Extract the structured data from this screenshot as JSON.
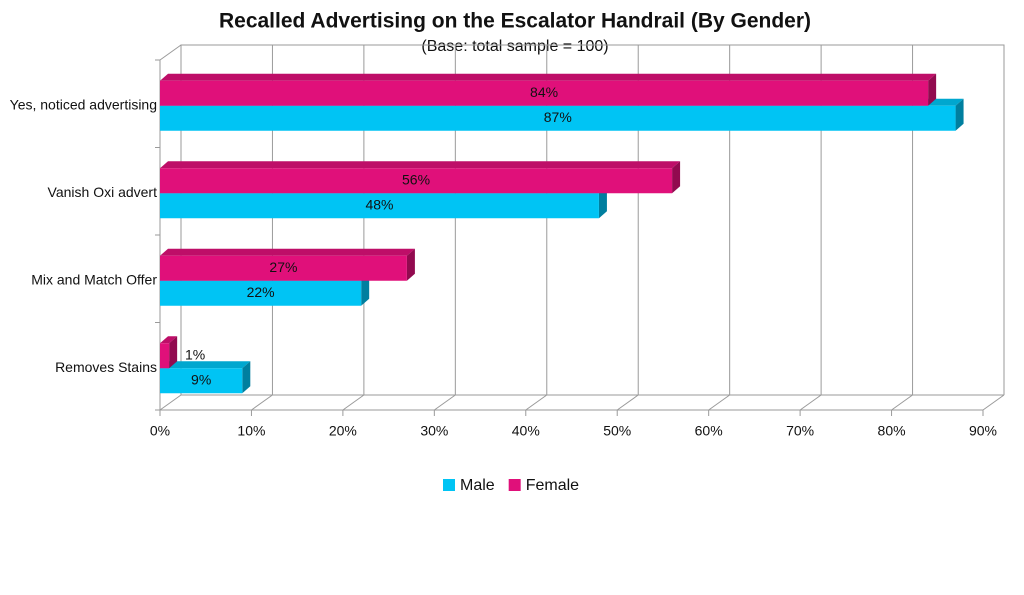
{
  "chart_data": {
    "type": "hbar3d",
    "title": "Recalled Advertising on the Escalator Handrail (By Gender)",
    "subtitle": "(Base: total sample = 100)",
    "categories": [
      "Yes, noticed advertising",
      "Vanish Oxi advert",
      "Mix and Match Offer",
      "Removes Stains"
    ],
    "series": [
      {
        "name": "Male",
        "color": "#00c4f4",
        "values": [
          87,
          48,
          22,
          9
        ],
        "value_labels": [
          "87%",
          "48%",
          "22%",
          "9%"
        ]
      },
      {
        "name": "Female",
        "color": "#e0107a",
        "values": [
          84,
          56,
          27,
          1
        ],
        "value_labels": [
          "84%",
          "56%",
          "27%",
          "1%"
        ]
      }
    ],
    "xlim": [
      0,
      90
    ],
    "xticks": [
      {
        "value": 0,
        "label": "0%"
      },
      {
        "value": 10,
        "label": "10%"
      },
      {
        "value": 20,
        "label": "20%"
      },
      {
        "value": 30,
        "label": "30%"
      },
      {
        "value": 40,
        "label": "40%"
      },
      {
        "value": 50,
        "label": "50%"
      },
      {
        "value": 60,
        "label": "60%"
      },
      {
        "value": 70,
        "label": "70%"
      },
      {
        "value": 80,
        "label": "80%"
      },
      {
        "value": 90,
        "label": "90%"
      }
    ],
    "grid": true,
    "legend": "bottom"
  }
}
